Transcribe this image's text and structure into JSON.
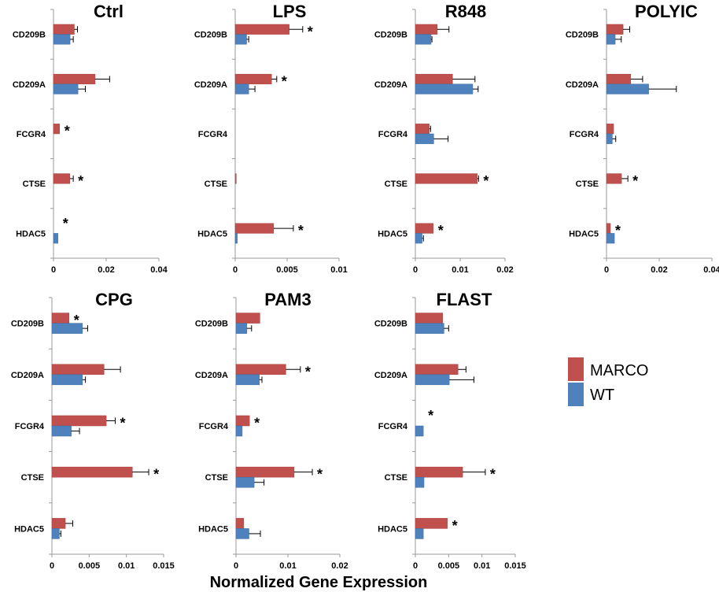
{
  "chart_data": {
    "type": "bar",
    "orientation": "horizontal",
    "xlabel": "Normalized Gene Expression",
    "legend": {
      "placement": "right",
      "entries": [
        {
          "name": "MARCO",
          "color": "#c0504d"
        },
        {
          "name": "WT",
          "color": "#4f81bd"
        }
      ]
    },
    "categories": [
      "CD209B",
      "CD209A",
      "FCGR4",
      "CTSE",
      "HDAC5"
    ],
    "panels": [
      {
        "title": "Ctrl",
        "xlim": [
          0,
          0.04
        ],
        "ticks": [
          {
            "v": 0,
            "label": "0"
          },
          {
            "v": 0.02,
            "label": "0.02"
          },
          {
            "v": 0.04,
            "label": "0.04"
          }
        ],
        "series": [
          {
            "name": "MARCO",
            "values": [
              0.0079,
              0.0158,
              0.0023,
              0.0062,
              0
            ],
            "errors": [
              0.0012,
              0.0055,
              0,
              0.0013,
              0
            ]
          },
          {
            "name": "WT",
            "values": [
              0.0063,
              0.0093,
              0,
              0,
              0.0017
            ],
            "errors": [
              0.0012,
              0.0028,
              0,
              0,
              0
            ]
          }
        ],
        "stars": [
          "",
          "",
          "*",
          "*",
          "*"
        ]
      },
      {
        "title": "LPS",
        "xlim": [
          0,
          0.01
        ],
        "ticks": [
          {
            "v": 0,
            "label": "0"
          },
          {
            "v": 0.005,
            "label": "0.005"
          },
          {
            "v": 0.01,
            "label": "0.01"
          }
        ],
        "series": [
          {
            "name": "MARCO",
            "values": [
              0.0052,
              0.0035,
              0,
              0.0001,
              0.0037
            ],
            "errors": [
              0.0013,
              0.0005,
              0,
              0,
              0.0019
            ]
          },
          {
            "name": "WT",
            "values": [
              0.0011,
              0.0013,
              0,
              0,
              0.0002
            ],
            "errors": [
              0.0002,
              0.0006,
              0,
              0,
              0
            ]
          }
        ],
        "stars": [
          "*",
          "*",
          "",
          "",
          "*"
        ]
      },
      {
        "title": "R848",
        "xlim": [
          0,
          0.02
        ],
        "ticks": [
          {
            "v": 0,
            "label": "0"
          },
          {
            "v": 0.01,
            "label": "0.01"
          },
          {
            "v": 0.02,
            "label": "0.02"
          }
        ],
        "series": [
          {
            "name": "MARCO",
            "values": [
              0.0049,
              0.0083,
              0.0031,
              0.0138,
              0.004
            ],
            "errors": [
              0.0026,
              0.005,
              0.0003,
              0.0003,
              0
            ]
          },
          {
            "name": "WT",
            "values": [
              0.0035,
              0.0128,
              0.0041,
              0,
              0.0015
            ],
            "errors": [
              0.0002,
              0.0012,
              0.0032,
              0,
              0.0003
            ]
          }
        ],
        "stars": [
          "",
          "",
          "",
          "*",
          "*"
        ]
      },
      {
        "title": "POLYIC",
        "xlim": [
          0,
          0.04
        ],
        "ticks": [
          {
            "v": 0,
            "label": "0"
          },
          {
            "v": 0.02,
            "label": "0.02"
          },
          {
            "v": 0.04,
            "label": "0.04"
          }
        ],
        "series": [
          {
            "name": "MARCO",
            "values": [
              0.0063,
              0.0092,
              0.0027,
              0.0057,
              0.0015
            ],
            "errors": [
              0.0025,
              0.0045,
              0,
              0.0024,
              0
            ]
          },
          {
            "name": "WT",
            "values": [
              0.0033,
              0.016,
              0.0022,
              0,
              0.003
            ],
            "errors": [
              0.0023,
              0.0105,
              0.0013,
              0,
              0
            ]
          }
        ],
        "stars": [
          "",
          "",
          "",
          "*",
          "*"
        ]
      },
      {
        "title": "CPG",
        "xlim": [
          0,
          0.015
        ],
        "ticks": [
          {
            "v": 0,
            "label": "0"
          },
          {
            "v": 0.005,
            "label": "0.005"
          },
          {
            "v": 0.01,
            "label": "0.01"
          },
          {
            "v": 0.015,
            "label": "0.015"
          }
        ],
        "series": [
          {
            "name": "MARCO",
            "values": [
              0.0023,
              0.007,
              0.0073,
              0.0108,
              0.0018
            ],
            "errors": [
              0,
              0.0022,
              0.0012,
              0.0022,
              0.001
            ]
          },
          {
            "name": "WT",
            "values": [
              0.0041,
              0.0041,
              0.0026,
              0,
              0.001
            ],
            "errors": [
              0.0007,
              0.0004,
              0.0011,
              0,
              0.0002
            ]
          }
        ],
        "stars": [
          "*",
          "",
          "*",
          "*",
          ""
        ]
      },
      {
        "title": "PAM3",
        "xlim": [
          0,
          0.02
        ],
        "ticks": [
          {
            "v": 0,
            "label": "0"
          },
          {
            "v": 0.01,
            "label": "0.01"
          },
          {
            "v": 0.02,
            "label": "0.02"
          }
        ],
        "series": [
          {
            "name": "MARCO",
            "values": [
              0.0046,
              0.0096,
              0.0026,
              0.0112,
              0.0015
            ],
            "errors": [
              0,
              0.0028,
              0,
              0.0035,
              0
            ]
          },
          {
            "name": "WT",
            "values": [
              0.0021,
              0.0045,
              0.0012,
              0.0035,
              0.0025
            ],
            "errors": [
              0.0009,
              0.0005,
              0,
              0.0019,
              0.0022
            ]
          }
        ],
        "stars": [
          "",
          "*",
          "*",
          "*",
          ""
        ]
      },
      {
        "title": "FLAST",
        "xlim": [
          0,
          0.015
        ],
        "ticks": [
          {
            "v": 0,
            "label": "0"
          },
          {
            "v": 0.005,
            "label": "0.005"
          },
          {
            "v": 0.01,
            "label": "0.01"
          },
          {
            "v": 0.015,
            "label": "0.015"
          }
        ],
        "series": [
          {
            "name": "MARCO",
            "values": [
              0.0041,
              0.0064,
              0,
              0.0071,
              0.0048
            ],
            "errors": [
              0,
              0.0012,
              0,
              0.0034,
              0
            ]
          },
          {
            "name": "WT",
            "values": [
              0.0043,
              0.0051,
              0.0012,
              0.0013,
              0.0012
            ],
            "errors": [
              0.0007,
              0.0037,
              0,
              0,
              0
            ]
          }
        ],
        "stars": [
          "",
          "",
          "*",
          "*",
          "*"
        ]
      }
    ]
  }
}
